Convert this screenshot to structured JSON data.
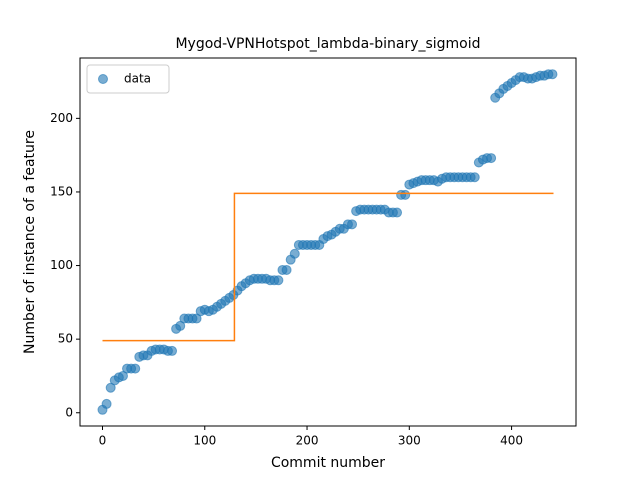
{
  "chart_data": {
    "type": "scatter",
    "title": "Mygod-VPNHotspot_lambda-binary_sigmoid",
    "x_label": "Commit number",
    "y_label": "Number of instance of a feature",
    "xlim": [
      -22,
      463
    ],
    "ylim": [
      -9,
      241
    ],
    "xticks": [
      0,
      100,
      200,
      300,
      400
    ],
    "yticks": [
      0,
      50,
      100,
      150,
      200
    ],
    "legend": "upper left",
    "series": [
      {
        "name": "data",
        "type": "scatter",
        "color": "#1f77b4",
        "x": [
          0,
          4,
          8,
          12,
          16,
          20,
          24,
          28,
          32,
          36,
          40,
          44,
          48,
          52,
          56,
          60,
          64,
          68,
          72,
          76,
          80,
          84,
          88,
          92,
          96,
          100,
          104,
          108,
          112,
          116,
          120,
          124,
          128,
          132,
          136,
          140,
          144,
          148,
          152,
          156,
          160,
          164,
          168,
          172,
          176,
          180,
          184,
          188,
          192,
          196,
          200,
          204,
          208,
          212,
          216,
          220,
          224,
          228,
          232,
          236,
          240,
          244,
          248,
          252,
          256,
          260,
          264,
          268,
          272,
          276,
          280,
          284,
          288,
          292,
          296,
          300,
          304,
          308,
          312,
          316,
          320,
          324,
          328,
          332,
          336,
          340,
          344,
          348,
          352,
          356,
          360,
          364,
          368,
          372,
          376,
          380,
          384,
          388,
          392,
          396,
          400,
          404,
          408,
          412,
          416,
          420,
          424,
          428,
          432,
          436,
          440
        ],
        "values": [
          2,
          6,
          17,
          22,
          24,
          25,
          30,
          30,
          30,
          38,
          39,
          39,
          42,
          43,
          43,
          43,
          42,
          42,
          57,
          59,
          64,
          64,
          64,
          64,
          69,
          70,
          69,
          70,
          72,
          74,
          76,
          78,
          80,
          83,
          86,
          88,
          90,
          91,
          91,
          91,
          91,
          90,
          90,
          90,
          97,
          97,
          104,
          108,
          114,
          114,
          114,
          114,
          114,
          114,
          118,
          120,
          121,
          123,
          125,
          125,
          128,
          128,
          137,
          138,
          138,
          138,
          138,
          138,
          138,
          138,
          136,
          136,
          136,
          148,
          148,
          155,
          156,
          157,
          158,
          158,
          158,
          158,
          157,
          159,
          160,
          160,
          160,
          160,
          160,
          160,
          160,
          160,
          170,
          172,
          173,
          173,
          214,
          217,
          220,
          222,
          224,
          226,
          228,
          228,
          227,
          227,
          228,
          229,
          229,
          230,
          230
        ]
      },
      {
        "type": "line",
        "color": "#ff7f0e",
        "x": [
          0,
          129,
          129,
          441
        ],
        "values": [
          49,
          49,
          149,
          149
        ]
      }
    ]
  }
}
